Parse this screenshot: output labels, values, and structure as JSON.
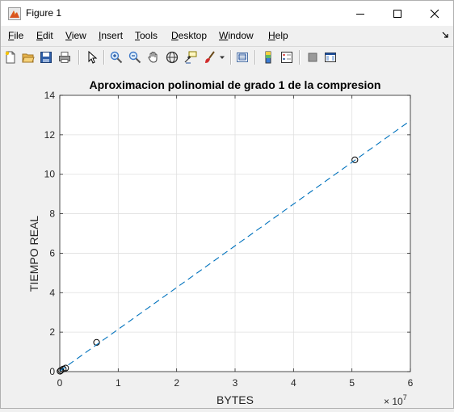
{
  "window": {
    "title": "Figure 1",
    "controls": [
      "minimize",
      "maximize",
      "close"
    ]
  },
  "menu": [
    {
      "label": "File",
      "mnemonic": "F",
      "rest": "ile"
    },
    {
      "label": "Edit",
      "mnemonic": "E",
      "rest": "dit"
    },
    {
      "label": "View",
      "mnemonic": "V",
      "rest": "iew"
    },
    {
      "label": "Insert",
      "mnemonic": "I",
      "rest": "nsert"
    },
    {
      "label": "Tools",
      "mnemonic": "T",
      "rest": "ools"
    },
    {
      "label": "Desktop",
      "mnemonic": "D",
      "rest": "esktop"
    },
    {
      "label": "Window",
      "mnemonic": "W",
      "rest": "indow"
    },
    {
      "label": "Help",
      "mnemonic": "H",
      "rest": "elp"
    }
  ],
  "toolbar": {
    "icons": [
      "new-figure-icon",
      "open-file-icon",
      "save-icon",
      "print-icon",
      "edit-plot-arrow-icon",
      "zoom-in-icon",
      "zoom-out-icon",
      "pan-hand-icon",
      "rotate-3d-icon",
      "data-cursor-icon",
      "brush-icon",
      "brush-dropdown-icon",
      "link-plot-icon",
      "colorbar-icon",
      "legend-icon",
      "hide-plot-tools-icon",
      "show-plot-tools-icon"
    ]
  },
  "chart_data": {
    "type": "scatter",
    "title": "Aproximacion polinomial de grado 1 de la compresion",
    "xlabel": "BYTES",
    "ylabel": "TIEMPO REAL",
    "x_exponent_label": "× 10",
    "x_exponent_power": "7",
    "xlim": [
      0,
      6
    ],
    "ylim": [
      0,
      14
    ],
    "x_ticks": [
      "0",
      "1",
      "2",
      "3",
      "4",
      "5",
      "6"
    ],
    "y_ticks": [
      "0",
      "2",
      "4",
      "6",
      "8",
      "10",
      "12",
      "14"
    ],
    "x_tick_values": [
      0,
      1,
      2,
      3,
      4,
      5,
      6
    ],
    "y_tick_values": [
      0,
      2,
      4,
      6,
      8,
      10,
      12,
      14
    ],
    "grid": true,
    "series": [
      {
        "kind": "markers",
        "marker": "circle-open",
        "color": "#000000",
        "points": [
          [
            0.005,
            0.02
          ],
          [
            0.02,
            0.06
          ],
          [
            0.06,
            0.13
          ],
          [
            0.1,
            0.18
          ],
          [
            0.63,
            1.48
          ],
          [
            5.05,
            10.73
          ]
        ]
      },
      {
        "kind": "line",
        "style": "dashed",
        "color": "#0072bd",
        "points": [
          [
            0,
            0.03
          ],
          [
            6,
            12.72
          ]
        ]
      }
    ]
  }
}
